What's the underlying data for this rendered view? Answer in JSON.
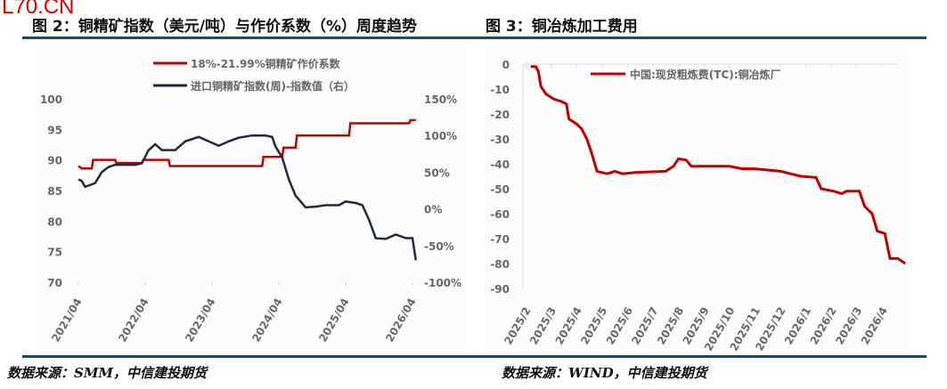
{
  "watermark": "L70.CN",
  "source_left": "数据来源：SMM，中信建投期货",
  "source_right": "数据来源：WIND，中信建投期货",
  "chart_data": [
    {
      "type": "line",
      "title": "图 2：铜精矿指数（美元/吨）与作价系数（%）周度趋势",
      "x_ticks": [
        "2021/04",
        "2022/04",
        "2023/04",
        "2024/04",
        "2025/04",
        "2026/04"
      ],
      "x_unit": "years since 2021/04",
      "ylim_left": [
        70,
        100
      ],
      "yticks_left": [
        "100",
        "95",
        "90",
        "85",
        "80",
        "75",
        "70"
      ],
      "ylim_right": [
        -100,
        150
      ],
      "yticks_right": [
        "150%",
        "100%",
        "50%",
        "0%",
        "-50%",
        "-100%"
      ],
      "legend_position": "top-center",
      "series": [
        {
          "name": "18%-21.99%铜精矿作价系数",
          "axis": "left",
          "color": "#c00000",
          "points": [
            [
              0,
              89
            ],
            [
              0.05,
              88.6
            ],
            [
              0.2,
              88.6
            ],
            [
              0.22,
              90
            ],
            [
              0.55,
              90
            ],
            [
              0.57,
              89.5
            ],
            [
              0.95,
              89.5
            ],
            [
              0.97,
              90
            ],
            [
              1.35,
              90
            ],
            [
              1.37,
              89
            ],
            [
              2.75,
              89
            ],
            [
              2.77,
              90.5
            ],
            [
              3.05,
              90.5
            ],
            [
              3.07,
              92
            ],
            [
              3.25,
              92
            ],
            [
              3.27,
              94
            ],
            [
              4.05,
              94
            ],
            [
              4.07,
              96
            ],
            [
              4.95,
              96
            ],
            [
              4.97,
              96.5
            ],
            [
              5.05,
              96.5
            ]
          ]
        },
        {
          "name": "进口铜精矿指数(周)-指数值（右）",
          "axis": "right",
          "color": "#1f2a3a",
          "points": [
            [
              0,
              40
            ],
            [
              0.05,
              38
            ],
            [
              0.1,
              30
            ],
            [
              0.25,
              35
            ],
            [
              0.35,
              50
            ],
            [
              0.45,
              57
            ],
            [
              0.55,
              60
            ],
            [
              0.7,
              60
            ],
            [
              0.85,
              60
            ],
            [
              0.95,
              62
            ],
            [
              1.05,
              80
            ],
            [
              1.15,
              88
            ],
            [
              1.25,
              80
            ],
            [
              1.45,
              80
            ],
            [
              1.6,
              92
            ],
            [
              1.8,
              98
            ],
            [
              1.95,
              92
            ],
            [
              2.1,
              86
            ],
            [
              2.25,
              92
            ],
            [
              2.4,
              97
            ],
            [
              2.6,
              100
            ],
            [
              2.8,
              100
            ],
            [
              2.9,
              98
            ],
            [
              2.95,
              85
            ],
            [
              3.05,
              70
            ],
            [
              3.15,
              40
            ],
            [
              3.25,
              18
            ],
            [
              3.4,
              2
            ],
            [
              3.55,
              3
            ],
            [
              3.7,
              5
            ],
            [
              3.9,
              5
            ],
            [
              4.0,
              10
            ],
            [
              4.15,
              8
            ],
            [
              4.25,
              5
            ],
            [
              4.35,
              -15
            ],
            [
              4.45,
              -40
            ],
            [
              4.6,
              -41
            ],
            [
              4.75,
              -35
            ],
            [
              4.9,
              -40
            ],
            [
              5.0,
              -40
            ],
            [
              5.02,
              -52
            ],
            [
              5.05,
              -70
            ]
          ]
        }
      ]
    },
    {
      "type": "line",
      "title": "图 3：铜冶炼加工费用",
      "x_ticks": [
        "2025/2",
        "2025/3",
        "2025/4",
        "2025/5",
        "2025/6",
        "2025/7",
        "2025/8",
        "2025/9",
        "2025/10",
        "2025/11",
        "2025/12",
        "2026/1",
        "2026/2",
        "2026/3",
        "2026/4"
      ],
      "x_unit": "months since 2025/2",
      "ylim": [
        -90,
        0
      ],
      "yticks": [
        "0",
        "-10",
        "-20",
        "-30",
        "-40",
        "-50",
        "-60",
        "-70",
        "-80",
        "-90"
      ],
      "legend_position": "top-center",
      "series": [
        {
          "name": "中国:现货粗炼费(TC):铜冶炼厂",
          "color": "#c00000",
          "points": [
            [
              0.2,
              -1
            ],
            [
              0.4,
              -1
            ],
            [
              0.5,
              -3
            ],
            [
              0.6,
              -9
            ],
            [
              0.8,
              -12
            ],
            [
              1.1,
              -14
            ],
            [
              1.4,
              -15
            ],
            [
              1.6,
              -16
            ],
            [
              1.7,
              -22
            ],
            [
              2.0,
              -24
            ],
            [
              2.2,
              -26
            ],
            [
              2.4,
              -30
            ],
            [
              2.6,
              -36
            ],
            [
              2.8,
              -43
            ],
            [
              3.2,
              -44
            ],
            [
              3.5,
              -43
            ],
            [
              3.8,
              -44
            ],
            [
              4.3,
              -43.5
            ],
            [
              5.5,
              -43
            ],
            [
              5.8,
              -41
            ],
            [
              6.0,
              -38
            ],
            [
              6.3,
              -38.5
            ],
            [
              6.5,
              -41
            ],
            [
              7.5,
              -41
            ],
            [
              8.0,
              -41
            ],
            [
              8.5,
              -42
            ],
            [
              9.0,
              -42
            ],
            [
              10.0,
              -43
            ],
            [
              10.8,
              -45
            ],
            [
              11.4,
              -45.5
            ],
            [
              11.6,
              -50
            ],
            [
              12.1,
              -51
            ],
            [
              12.4,
              -52
            ],
            [
              12.6,
              -51
            ],
            [
              13.1,
              -51
            ],
            [
              13.3,
              -57
            ],
            [
              13.6,
              -60
            ],
            [
              13.8,
              -67
            ],
            [
              14.1,
              -68
            ],
            [
              14.3,
              -78
            ],
            [
              14.6,
              -78
            ],
            [
              14.9,
              -80
            ]
          ]
        }
      ]
    }
  ]
}
